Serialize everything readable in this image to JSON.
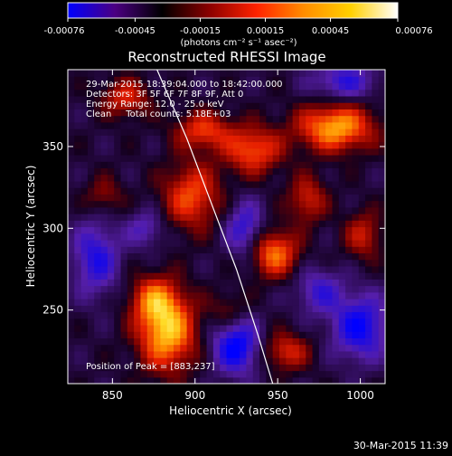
{
  "colorbar": {
    "ticks": [
      "-0.00076",
      "-0.00045",
      "-0.00015",
      "0.00015",
      "0.00045",
      "0.00076"
    ],
    "values": [
      -0.00076,
      -0.00045,
      -0.00015,
      0.00015,
      0.00045,
      0.00076
    ],
    "units_label": "(photons cm⁻² s⁻¹ asec⁻²)",
    "stops": [
      "#0000ff",
      "#4b0082",
      "#000000",
      "#8b0000",
      "#ff2200",
      "#ff8c00",
      "#ffd000",
      "#ffffff"
    ]
  },
  "chart_data": {
    "type": "heatmap",
    "title": "Reconstructed RHESSI Image",
    "xlabel": "Heliocentric X (arcsec)",
    "ylabel": "Heliocentric Y (arcsec)",
    "xlim": [
      823,
      1015
    ],
    "ylim": [
      205,
      397
    ],
    "xticks": [
      850,
      900,
      950,
      1000
    ],
    "yticks": [
      250,
      300,
      350
    ],
    "vmin": -0.00076,
    "vmax": 0.00076,
    "annotations": [
      "29-Mar-2015 18:39:04.000 to 18:42:00.000",
      "Detectors: 3F 5F 6F 7F 8F 9F, Att 0",
      "Energy Range: 12.0 - 25.0 keV",
      "Clean     Total counts: 5.18E+03"
    ],
    "peak_label": "Position of Peak = [883,237]",
    "peak": [
      883,
      237
    ],
    "limb_points": [
      [
        877,
        397
      ],
      [
        895,
        355
      ],
      [
        910,
        315
      ],
      [
        925,
        275
      ],
      [
        938,
        235
      ],
      [
        947,
        205
      ]
    ],
    "sources": [
      {
        "x": 883,
        "y": 237,
        "amp": 0.00076,
        "sx": 12,
        "sy": 16
      },
      {
        "x": 875,
        "y": 257,
        "amp": 0.00045,
        "sx": 10,
        "sy": 10
      },
      {
        "x": 985,
        "y": 362,
        "amp": 0.0007,
        "sx": 16,
        "sy": 10
      },
      {
        "x": 948,
        "y": 285,
        "amp": 0.00058,
        "sx": 10,
        "sy": 10
      },
      {
        "x": 935,
        "y": 348,
        "amp": 0.00052,
        "sx": 12,
        "sy": 10
      },
      {
        "x": 898,
        "y": 320,
        "amp": 0.0005,
        "sx": 12,
        "sy": 14
      },
      {
        "x": 858,
        "y": 380,
        "amp": 0.0004,
        "sx": 10,
        "sy": 8
      },
      {
        "x": 905,
        "y": 360,
        "amp": 0.00045,
        "sx": 12,
        "sy": 8
      },
      {
        "x": 968,
        "y": 318,
        "amp": 0.00038,
        "sx": 8,
        "sy": 10
      },
      {
        "x": 955,
        "y": 225,
        "amp": 0.0004,
        "sx": 10,
        "sy": 8
      },
      {
        "x": 1002,
        "y": 296,
        "amp": 0.00035,
        "sx": 8,
        "sy": 10
      },
      {
        "x": 845,
        "y": 320,
        "amp": 0.00025,
        "sx": 8,
        "sy": 8
      },
      {
        "x": 920,
        "y": 250,
        "amp": 0.00022,
        "sx": 8,
        "sy": 8
      },
      {
        "x": 840,
        "y": 282,
        "amp": -0.00045,
        "sx": 10,
        "sy": 16
      },
      {
        "x": 925,
        "y": 228,
        "amp": -0.0006,
        "sx": 10,
        "sy": 12
      },
      {
        "x": 1000,
        "y": 240,
        "amp": -0.00055,
        "sx": 12,
        "sy": 14
      },
      {
        "x": 990,
        "y": 390,
        "amp": -0.0004,
        "sx": 14,
        "sy": 8
      },
      {
        "x": 930,
        "y": 300,
        "amp": -0.00042,
        "sx": 8,
        "sy": 12
      },
      {
        "x": 975,
        "y": 262,
        "amp": -0.00035,
        "sx": 10,
        "sy": 10
      },
      {
        "x": 870,
        "y": 300,
        "amp": -0.0003,
        "sx": 8,
        "sy": 8
      }
    ]
  },
  "footer": {
    "timestamp": "30-Mar-2015 11:39"
  }
}
